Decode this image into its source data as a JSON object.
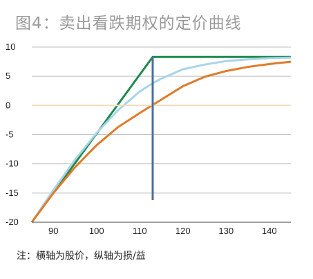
{
  "figure": {
    "title": "图4：卖出看跌期权的定价曲线",
    "note": "注：横轴为股价，纵轴为损/益"
  },
  "chart_data": {
    "type": "line",
    "title": "图4：卖出看跌期权的定价曲线",
    "xlabel": "",
    "ylabel": "",
    "xlim": [
      85,
      145
    ],
    "ylim": [
      -20,
      10
    ],
    "xticks": [
      90,
      100,
      110,
      120,
      130,
      140
    ],
    "yticks": [
      10,
      5,
      0,
      -5,
      -10,
      -15,
      -20
    ],
    "grid": "horizontal",
    "legend": "none",
    "series": [
      {
        "color": "#1e8a4c",
        "style": "solid",
        "x": [
          85,
          113,
          145
        ],
        "y": [
          -20,
          8.3,
          8.3
        ]
      },
      {
        "color": "#a8d4ec",
        "style": "solid",
        "x": [
          85,
          90,
          95,
          100,
          105,
          110,
          113,
          115,
          120,
          125,
          130,
          135,
          140,
          145
        ],
        "y": [
          -20,
          -14.5,
          -9.3,
          -4.7,
          -0.8,
          2.4,
          3.8,
          4.6,
          6.2,
          7.0,
          7.6,
          7.9,
          8.1,
          8.2
        ]
      },
      {
        "color": "#e07b2a",
        "style": "solid",
        "x": [
          85,
          90,
          95,
          100,
          105,
          110,
          113,
          115,
          120,
          125,
          130,
          135,
          140,
          145
        ],
        "y": [
          -20,
          -15.0,
          -10.6,
          -6.8,
          -3.7,
          -1.3,
          0.1,
          1.0,
          3.3,
          4.9,
          5.9,
          6.6,
          7.1,
          7.5
        ]
      },
      {
        "color": "#f0dcbc",
        "style": "solid",
        "x": [
          85,
          145
        ],
        "y": [
          0,
          0
        ]
      },
      {
        "color": "#4a6f9c",
        "style": "solid",
        "x": [
          113,
          113
        ],
        "y": [
          8.3,
          -16.2
        ]
      }
    ]
  }
}
